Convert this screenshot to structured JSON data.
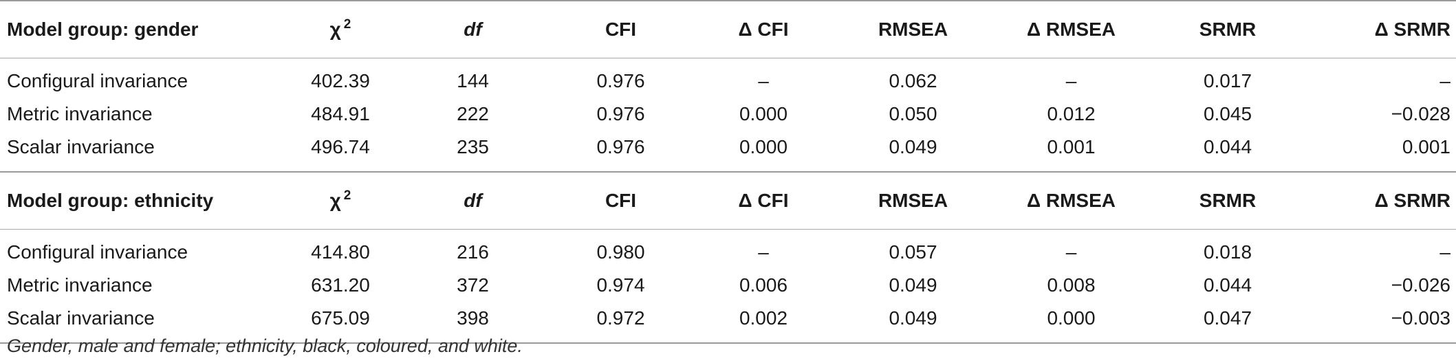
{
  "groups": [
    {
      "header": {
        "label": "Model group: gender",
        "chi": "χ",
        "chi_sup": "2",
        "df": "df",
        "cfi": "CFI",
        "dcfi": "Δ CFI",
        "rmsea": "RMSEA",
        "drmsea": "Δ RMSEA",
        "srmr": "SRMR",
        "dsrmr": "Δ SRMR"
      },
      "rows": [
        {
          "label": "Configural invariance",
          "chi": "402.39",
          "df": "144",
          "cfi": "0.976",
          "dcfi": "–",
          "rmsea": "0.062",
          "drmsea": "–",
          "srmr": "0.017",
          "dsrmr": "–"
        },
        {
          "label": "Metric invariance",
          "chi": "484.91",
          "df": "222",
          "cfi": "0.976",
          "dcfi": "0.000",
          "rmsea": "0.050",
          "drmsea": "0.012",
          "srmr": "0.045",
          "dsrmr": "−0.028"
        },
        {
          "label": "Scalar invariance",
          "chi": "496.74",
          "df": "235",
          "cfi": "0.976",
          "dcfi": "0.000",
          "rmsea": "0.049",
          "drmsea": "0.001",
          "srmr": "0.044",
          "dsrmr": "0.001"
        }
      ]
    },
    {
      "header": {
        "label": "Model group: ethnicity",
        "chi": "χ",
        "chi_sup": "2",
        "df": "df",
        "cfi": "CFI",
        "dcfi": "Δ CFI",
        "rmsea": "RMSEA",
        "drmsea": "Δ RMSEA",
        "srmr": "SRMR",
        "dsrmr": "Δ SRMR"
      },
      "rows": [
        {
          "label": "Configural invariance",
          "chi": "414.80",
          "df": "216",
          "cfi": "0.980",
          "dcfi": "–",
          "rmsea": "0.057",
          "drmsea": "–",
          "srmr": "0.018",
          "dsrmr": "–"
        },
        {
          "label": "Metric invariance",
          "chi": "631.20",
          "df": "372",
          "cfi": "0.974",
          "dcfi": "0.006",
          "rmsea": "0.049",
          "drmsea": "0.008",
          "srmr": "0.044",
          "dsrmr": "−0.026"
        },
        {
          "label": "Scalar invariance",
          "chi": "675.09",
          "df": "398",
          "cfi": "0.972",
          "dcfi": "0.002",
          "rmsea": "0.049",
          "drmsea": "0.000",
          "srmr": "0.047",
          "dsrmr": "−0.003"
        }
      ]
    }
  ],
  "note": "Gender, male and female; ethnicity, black, coloured, and white."
}
